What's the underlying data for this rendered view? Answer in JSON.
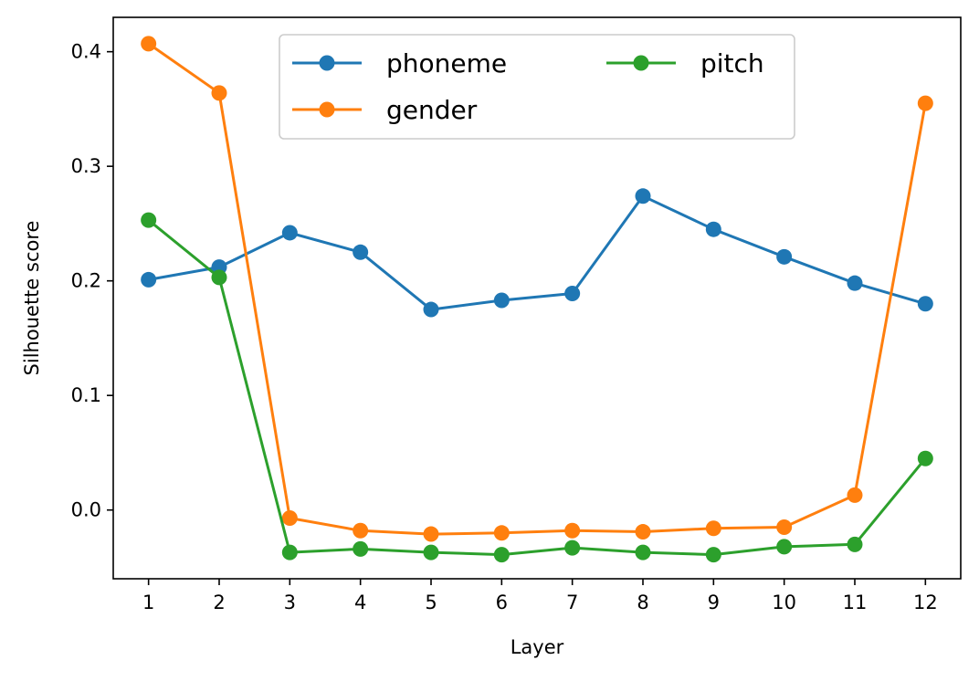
{
  "chart_data": {
    "type": "line",
    "title": "",
    "xlabel": "Layer",
    "ylabel": "Silhouette score",
    "x": [
      1,
      2,
      3,
      4,
      5,
      6,
      7,
      8,
      9,
      10,
      11,
      12
    ],
    "xlim": [
      0.5,
      12.5
    ],
    "ylim": [
      -0.06,
      0.43
    ],
    "yticks": [
      0.0,
      0.1,
      0.2,
      0.3,
      0.4
    ],
    "grid": false,
    "legend": {
      "placement": "top-center",
      "columns": 2
    },
    "series": [
      {
        "name": "phoneme",
        "color": "#1f77b4",
        "values": [
          0.201,
          0.212,
          0.242,
          0.225,
          0.175,
          0.183,
          0.189,
          0.274,
          0.245,
          0.221,
          0.198,
          0.18
        ]
      },
      {
        "name": "gender",
        "color": "#ff7f0e",
        "values": [
          0.407,
          0.364,
          -0.007,
          -0.018,
          -0.021,
          -0.02,
          -0.018,
          -0.019,
          -0.016,
          -0.015,
          0.013,
          0.355
        ]
      },
      {
        "name": "pitch",
        "color": "#2ca02c",
        "values": [
          0.253,
          0.203,
          -0.037,
          -0.034,
          -0.037,
          -0.039,
          -0.033,
          -0.037,
          -0.039,
          -0.032,
          -0.03,
          0.045
        ]
      }
    ]
  }
}
